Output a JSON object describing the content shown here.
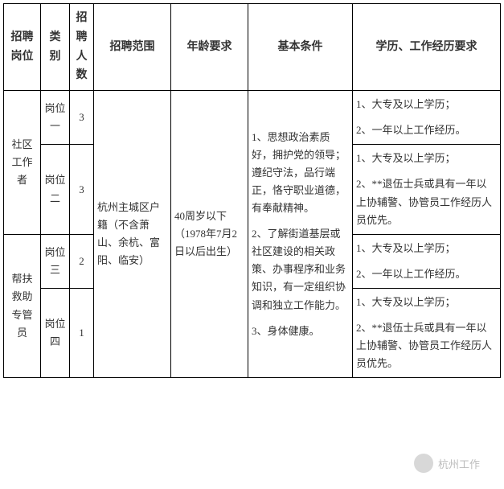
{
  "headers": {
    "position": "招聘岗位",
    "category": "类别",
    "count": "招聘人数",
    "scope": "招聘范围",
    "age": "年龄要求",
    "basic": "基本条件",
    "req": "学历、工作经历要求"
  },
  "positions": {
    "p1": "社区工作者",
    "p2": "帮扶救助专管员"
  },
  "cats": {
    "c1": "岗位一",
    "c2": "岗位二",
    "c3": "岗位三",
    "c4": "岗位四"
  },
  "counts": {
    "c1": "3",
    "c2": "3",
    "c3": "2",
    "c4": "1"
  },
  "scope": "杭州主城区户籍（不含萧山、余杭、富阳、临安）",
  "age": {
    "line1": "40周岁以下",
    "line2": "（1978年7月2日以后出生）"
  },
  "basic": {
    "b1": "1、思想政治素质好，拥护党的领导；遵纪守法，品行端正，恪守职业道德，有奉献精神。",
    "b2": "2、了解街道基层或社区建设的相关政策、办事程序和业务知识，有一定组织协调和独立工作能力。",
    "b3": "3、身体健康。"
  },
  "reqs": {
    "r1a": "1、大专及以上学历；",
    "r1b": "2、一年以上工作经历。",
    "r2a": "1、大专及以上学历；",
    "r2b": "2、**退伍士兵或具有一年以上协辅警、协管员工作经历人员优先。",
    "r3a": "1、大专及以上学历；",
    "r3b": "2、一年以上工作经历。",
    "r4a": "1、大专及以上学历；",
    "r4b": "2、**退伍士兵或具有一年以上协辅警、协管员工作经历人员优先。"
  },
  "watermark": "杭州工作"
}
